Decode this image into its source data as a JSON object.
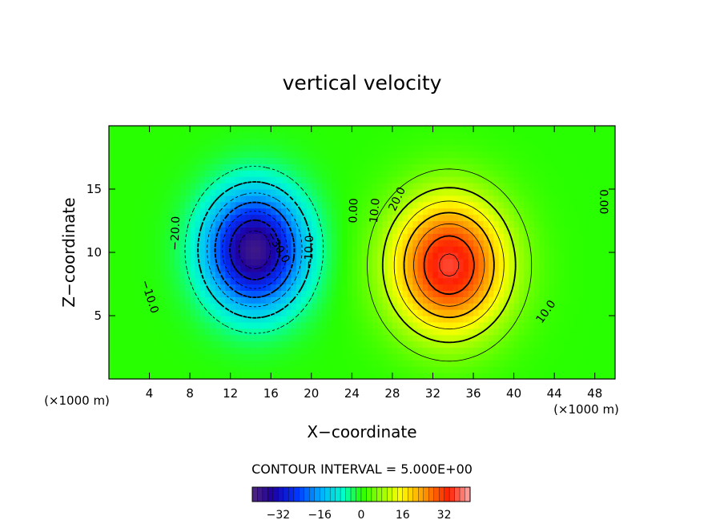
{
  "chart_data": {
    "type": "heatmap",
    "title": "vertical velocity",
    "xlabel": "X−coordinate",
    "ylabel": "Z−coordinate",
    "x_unit_left": "(×1000 m)",
    "x_unit_right": "(×1000 m)",
    "xlim": [
      0,
      50
    ],
    "ylim": [
      0,
      20
    ],
    "x_ticks": [
      4,
      8,
      12,
      16,
      20,
      24,
      28,
      32,
      36,
      40,
      44,
      48
    ],
    "y_ticks": [
      5,
      10,
      15
    ],
    "contour_interval_text": "CONTOUR INTERVAL = 5.000E+00",
    "colorbar_ticks": [
      "−32",
      "−16",
      "0",
      "16",
      "32"
    ],
    "colorbar_tick_values": [
      -32,
      -16,
      0,
      16,
      32
    ],
    "colorbar_range": [
      -42,
      42
    ],
    "cells": [
      {
        "name": "downdraft",
        "cx": 14.4,
        "cz": 10.2,
        "sx": 4.8,
        "sz": 4.6,
        "amp": -39
      },
      {
        "name": "updraft",
        "cx": 33.6,
        "cz": 9.0,
        "sx": 5.8,
        "sz": 5.4,
        "amp": 36
      }
    ],
    "contour_labels": [
      {
        "text": "−20.0",
        "x": 6.6,
        "z": 11.5,
        "rot": -88
      },
      {
        "text": "−30.0",
        "x": 16.7,
        "z": 10.4,
        "rot": 60
      },
      {
        "text": "−10.0",
        "x": 19.8,
        "z": 10.0,
        "rot": -88
      },
      {
        "text": "−10.0",
        "x": 4.0,
        "z": 6.5,
        "rot": 72
      },
      {
        "text": "0.00",
        "x": 24.2,
        "z": 13.3,
        "rot": -88
      },
      {
        "text": "10.0",
        "x": 26.3,
        "z": 13.3,
        "rot": -85
      },
      {
        "text": "20.0",
        "x": 28.5,
        "z": 14.2,
        "rot": -65
      },
      {
        "text": "10.0",
        "x": 43.2,
        "z": 5.3,
        "rot": -55
      },
      {
        "text": "0.00",
        "x": 48.8,
        "z": 14.0,
        "rot": 90
      }
    ]
  }
}
